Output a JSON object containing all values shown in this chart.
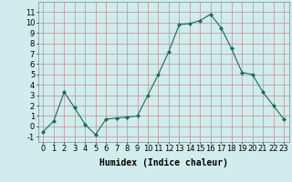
{
  "x": [
    0,
    1,
    2,
    3,
    4,
    5,
    6,
    7,
    8,
    9,
    10,
    11,
    12,
    13,
    14,
    15,
    16,
    17,
    18,
    19,
    20,
    21,
    22,
    23
  ],
  "y": [
    -0.5,
    0.5,
    3.3,
    1.8,
    0.2,
    -0.8,
    0.7,
    0.8,
    0.9,
    1.0,
    3.0,
    5.0,
    7.2,
    9.8,
    9.9,
    10.2,
    10.8,
    9.5,
    7.5,
    5.2,
    5.0,
    3.3,
    2.0,
    0.7
  ],
  "line_color": "#1a6b5a",
  "marker": "D",
  "marker_size": 2,
  "bg_color": "#d0ecec",
  "grid_color": "#c09090",
  "xlabel": "Humidex (Indice chaleur)",
  "ylim": [
    -1.5,
    12
  ],
  "xlim": [
    -0.5,
    23.5
  ],
  "yticks": [
    -1,
    0,
    1,
    2,
    3,
    4,
    5,
    6,
    7,
    8,
    9,
    10,
    11
  ],
  "xticks": [
    0,
    1,
    2,
    3,
    4,
    5,
    6,
    7,
    8,
    9,
    10,
    11,
    12,
    13,
    14,
    15,
    16,
    17,
    18,
    19,
    20,
    21,
    22,
    23
  ],
  "xlabel_fontsize": 7,
  "tick_fontsize": 6,
  "linewidth": 0.8
}
